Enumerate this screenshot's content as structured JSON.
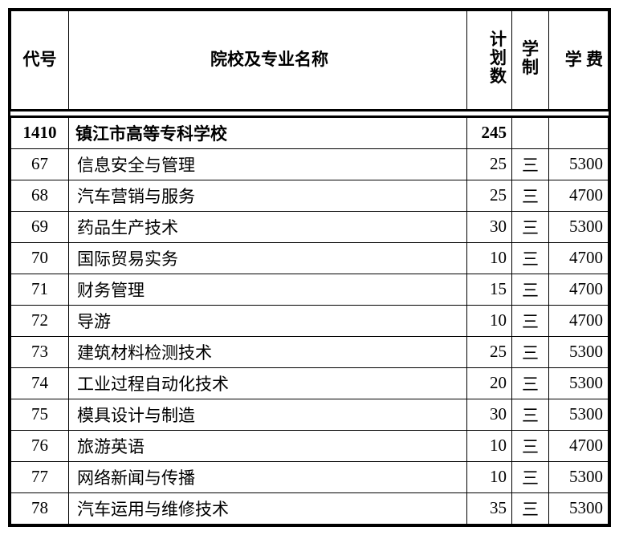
{
  "headers": {
    "code": "代号",
    "name": "院校及专业名称",
    "plan": "计\n划\n数",
    "duration": "学\n制",
    "fee": "学\n费"
  },
  "school": {
    "code": "1410",
    "name": "镇江市高等专科学校",
    "plan": "245",
    "duration": "",
    "fee": ""
  },
  "majors": [
    {
      "code": "67",
      "name": "信息安全与管理",
      "plan": "25",
      "duration": "三",
      "fee": "5300"
    },
    {
      "code": "68",
      "name": "汽车营销与服务",
      "plan": "25",
      "duration": "三",
      "fee": "4700"
    },
    {
      "code": "69",
      "name": "药品生产技术",
      "plan": "30",
      "duration": "三",
      "fee": "5300"
    },
    {
      "code": "70",
      "name": "国际贸易实务",
      "plan": "10",
      "duration": "三",
      "fee": "4700"
    },
    {
      "code": "71",
      "name": "财务管理",
      "plan": "15",
      "duration": "三",
      "fee": "4700"
    },
    {
      "code": "72",
      "name": "导游",
      "plan": "10",
      "duration": "三",
      "fee": "4700"
    },
    {
      "code": "73",
      "name": "建筑材料检测技术",
      "plan": "25",
      "duration": "三",
      "fee": "5300"
    },
    {
      "code": "74",
      "name": "工业过程自动化技术",
      "plan": "20",
      "duration": "三",
      "fee": "5300"
    },
    {
      "code": "75",
      "name": "模具设计与制造",
      "plan": "30",
      "duration": "三",
      "fee": "5300"
    },
    {
      "code": "76",
      "name": "旅游英语",
      "plan": "10",
      "duration": "三",
      "fee": "4700"
    },
    {
      "code": "77",
      "name": "网络新闻与传播",
      "plan": "10",
      "duration": "三",
      "fee": "5300"
    },
    {
      "code": "78",
      "name": "汽车运用与维修技术",
      "plan": "35",
      "duration": "三",
      "fee": "5300"
    }
  ],
  "colors": {
    "border": "#000000",
    "background": "#ffffff",
    "text": "#000000"
  }
}
